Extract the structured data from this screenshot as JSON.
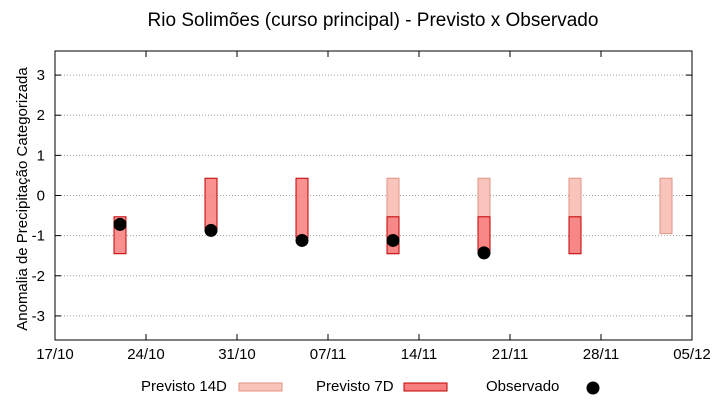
{
  "chart_data": {
    "type": "range-bar",
    "title": "Rio Solimões (curso principal) - Previsto x Observado",
    "ylabel": "Anomalia de Precipitação Categorizada",
    "xlabel": "",
    "ylim": [
      -3.6,
      3.6
    ],
    "yticks": [
      "-3",
      "-2",
      "-1",
      "0",
      "1",
      "2",
      "3"
    ],
    "ytick_values": [
      -3,
      -2,
      -1,
      0,
      1,
      2,
      3
    ],
    "xlim": [
      "2023-10-17",
      "2023-12-05"
    ],
    "xticks": [
      "17/10",
      "24/10",
      "31/10",
      "07/11",
      "14/11",
      "21/11",
      "28/11",
      "05/12"
    ],
    "xtick_values": [
      "2023-10-17",
      "2023-10-24",
      "2023-10-31",
      "2023-11-07",
      "2023-11-14",
      "2023-11-21",
      "2023-11-28",
      "2023-12-05"
    ],
    "grid": true,
    "legend_position": "bottom",
    "series": [
      {
        "name": "Previsto 14D",
        "color": "#f9c4bb",
        "points": [
          {
            "x": "2023-11-12",
            "low": -1.45,
            "high": 0.43
          },
          {
            "x": "2023-11-19",
            "low": -1.45,
            "high": 0.43
          },
          {
            "x": "2023-11-26",
            "low": -1.45,
            "high": 0.43
          },
          {
            "x": "2023-12-03",
            "low": -0.95,
            "high": 0.43
          }
        ]
      },
      {
        "name": "Previsto 7D",
        "color": "#f87e7e",
        "points": [
          {
            "x": "2023-10-22",
            "low": -1.45,
            "high": -0.53
          },
          {
            "x": "2023-10-29",
            "low": -0.85,
            "high": 0.43
          },
          {
            "x": "2023-11-05",
            "low": -1.05,
            "high": 0.43
          },
          {
            "x": "2023-11-12",
            "low": -1.45,
            "high": -0.53
          },
          {
            "x": "2023-11-19",
            "low": -1.45,
            "high": -0.53
          },
          {
            "x": "2023-11-26",
            "low": -1.45,
            "high": -0.53
          }
        ]
      },
      {
        "name": "Observado",
        "color": "#000000",
        "points": [
          {
            "x": "2023-10-22",
            "y": -0.72
          },
          {
            "x": "2023-10-29",
            "y": -0.87
          },
          {
            "x": "2023-11-05",
            "y": -1.12
          },
          {
            "x": "2023-11-12",
            "y": -1.12
          },
          {
            "x": "2023-11-19",
            "y": -1.43
          }
        ]
      }
    ]
  }
}
